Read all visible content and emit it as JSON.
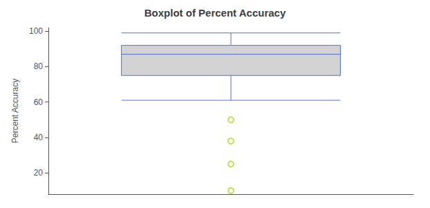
{
  "chart_data": {
    "type": "box",
    "title": "Boxplot of Percent Accuracy",
    "ylabel": "Percent Accuracy",
    "whisker_low": 61,
    "q1": 75,
    "median": 87,
    "q3": 92,
    "whisker_high": 99,
    "outliers": [
      50,
      38,
      25,
      10
    ],
    "ylim": [
      8,
      102
    ],
    "yticks": [
      20,
      40,
      60,
      80,
      100
    ],
    "color": "#d3d3d3",
    "marker": "emptyCircle",
    "grid": false,
    "tick_labels": "y"
  }
}
